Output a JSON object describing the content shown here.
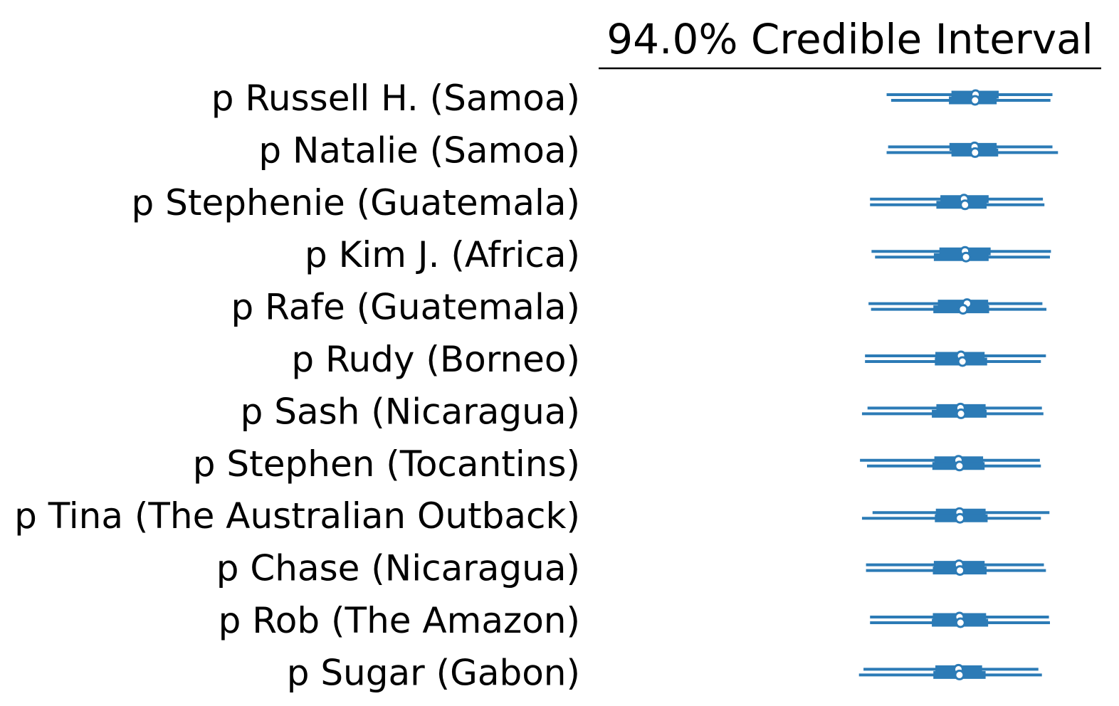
{
  "chart_data": {
    "type": "forest",
    "title": "94.0% Credible Interval",
    "color": "#2c7bb6",
    "labels": [
      "p Russell H. (Samoa)",
      "p Natalie (Samoa)",
      "p Stephenie (Guatemala)",
      "p Kim J. (Africa)",
      "p Rafe (Guatemala)",
      "p Rudy (Borneo)",
      "p Sash (Nicaragua)",
      "p Stephen (Tocantins)",
      "p Tina (The Australian Outback)",
      "p Chase (Nicaragua)",
      "p Rob (The Amazon)",
      "p Sugar (Gabon)"
    ],
    "xlim": [
      0.0,
      1.0
    ],
    "series": [
      {
        "chain": 0,
        "hdi_low": [
          0.573,
          0.576,
          0.54,
          0.543,
          0.537,
          0.53,
          0.535,
          0.52,
          0.545,
          0.532,
          0.54,
          0.527
        ],
        "iqr_low": [
          0.702,
          0.698,
          0.68,
          0.678,
          0.675,
          0.67,
          0.672,
          0.668,
          0.671,
          0.667,
          0.665,
          0.67
        ],
        "median": [
          0.75,
          0.748,
          0.727,
          0.729,
          0.733,
          0.721,
          0.72,
          0.716,
          0.718,
          0.717,
          0.718,
          0.716
        ],
        "iqr_high": [
          0.796,
          0.792,
          0.776,
          0.78,
          0.775,
          0.768,
          0.77,
          0.765,
          0.77,
          0.768,
          0.771,
          0.763
        ],
        "hdi_high": [
          0.903,
          0.903,
          0.884,
          0.9,
          0.883,
          0.89,
          0.882,
          0.878,
          0.897,
          0.886,
          0.896,
          0.875
        ]
      },
      {
        "chain": 1,
        "hdi_low": [
          0.582,
          0.573,
          0.54,
          0.55,
          0.542,
          0.53,
          0.524,
          0.534,
          0.524,
          0.532,
          0.54,
          0.518
        ],
        "iqr_low": [
          0.697,
          0.702,
          0.672,
          0.667,
          0.666,
          0.669,
          0.663,
          0.664,
          0.669,
          0.665,
          0.663,
          0.666
        ],
        "median": [
          0.749,
          0.749,
          0.729,
          0.731,
          0.725,
          0.724,
          0.721,
          0.718,
          0.719,
          0.719,
          0.72,
          0.718
        ],
        "iqr_high": [
          0.792,
          0.795,
          0.772,
          0.776,
          0.777,
          0.773,
          0.772,
          0.768,
          0.774,
          0.772,
          0.775,
          0.77
        ],
        "hdi_high": [
          0.899,
          0.914,
          0.887,
          0.898,
          0.891,
          0.88,
          0.885,
          0.88,
          0.88,
          0.89,
          0.898,
          0.882
        ]
      }
    ]
  }
}
